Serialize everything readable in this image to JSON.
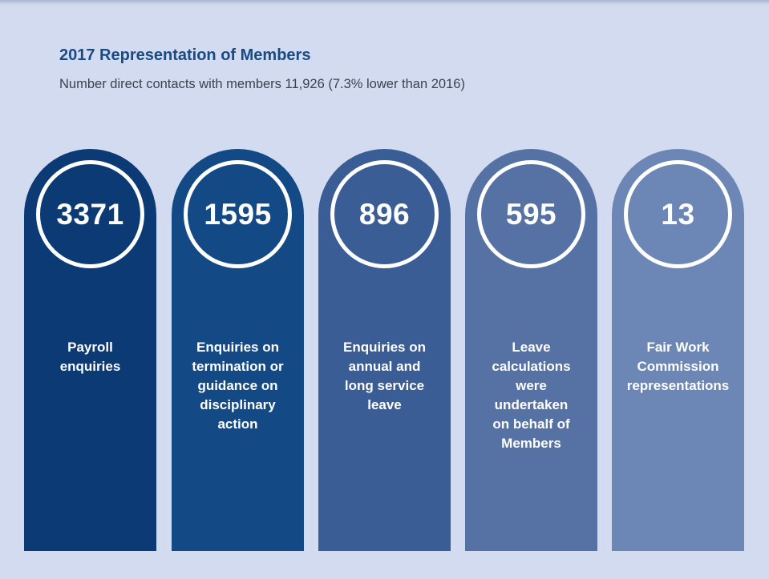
{
  "header": {
    "title": "2017 Representation of Members",
    "subtitle": "Number direct contacts with members 11,926 (7.3% lower than 2016)"
  },
  "stats": [
    {
      "value": "3371",
      "label": "Payroll\nenquiries",
      "color": "#0b3a74"
    },
    {
      "value": "1595",
      "label": "Enquiries on\ntermination or\nguidance on\ndisciplinary\naction",
      "color": "#134a86"
    },
    {
      "value": "896",
      "label": "Enquiries on\nannual and\nlong service\nleave",
      "color": "#3a5d96"
    },
    {
      "value": "595",
      "label": "Leave\ncalculations\nwere\nundertaken\non behalf of\nMembers",
      "color": "#5672a5"
    },
    {
      "value": "13",
      "label": "Fair Work\nCommission\nrepresentations",
      "color": "#6c87b6"
    }
  ]
}
